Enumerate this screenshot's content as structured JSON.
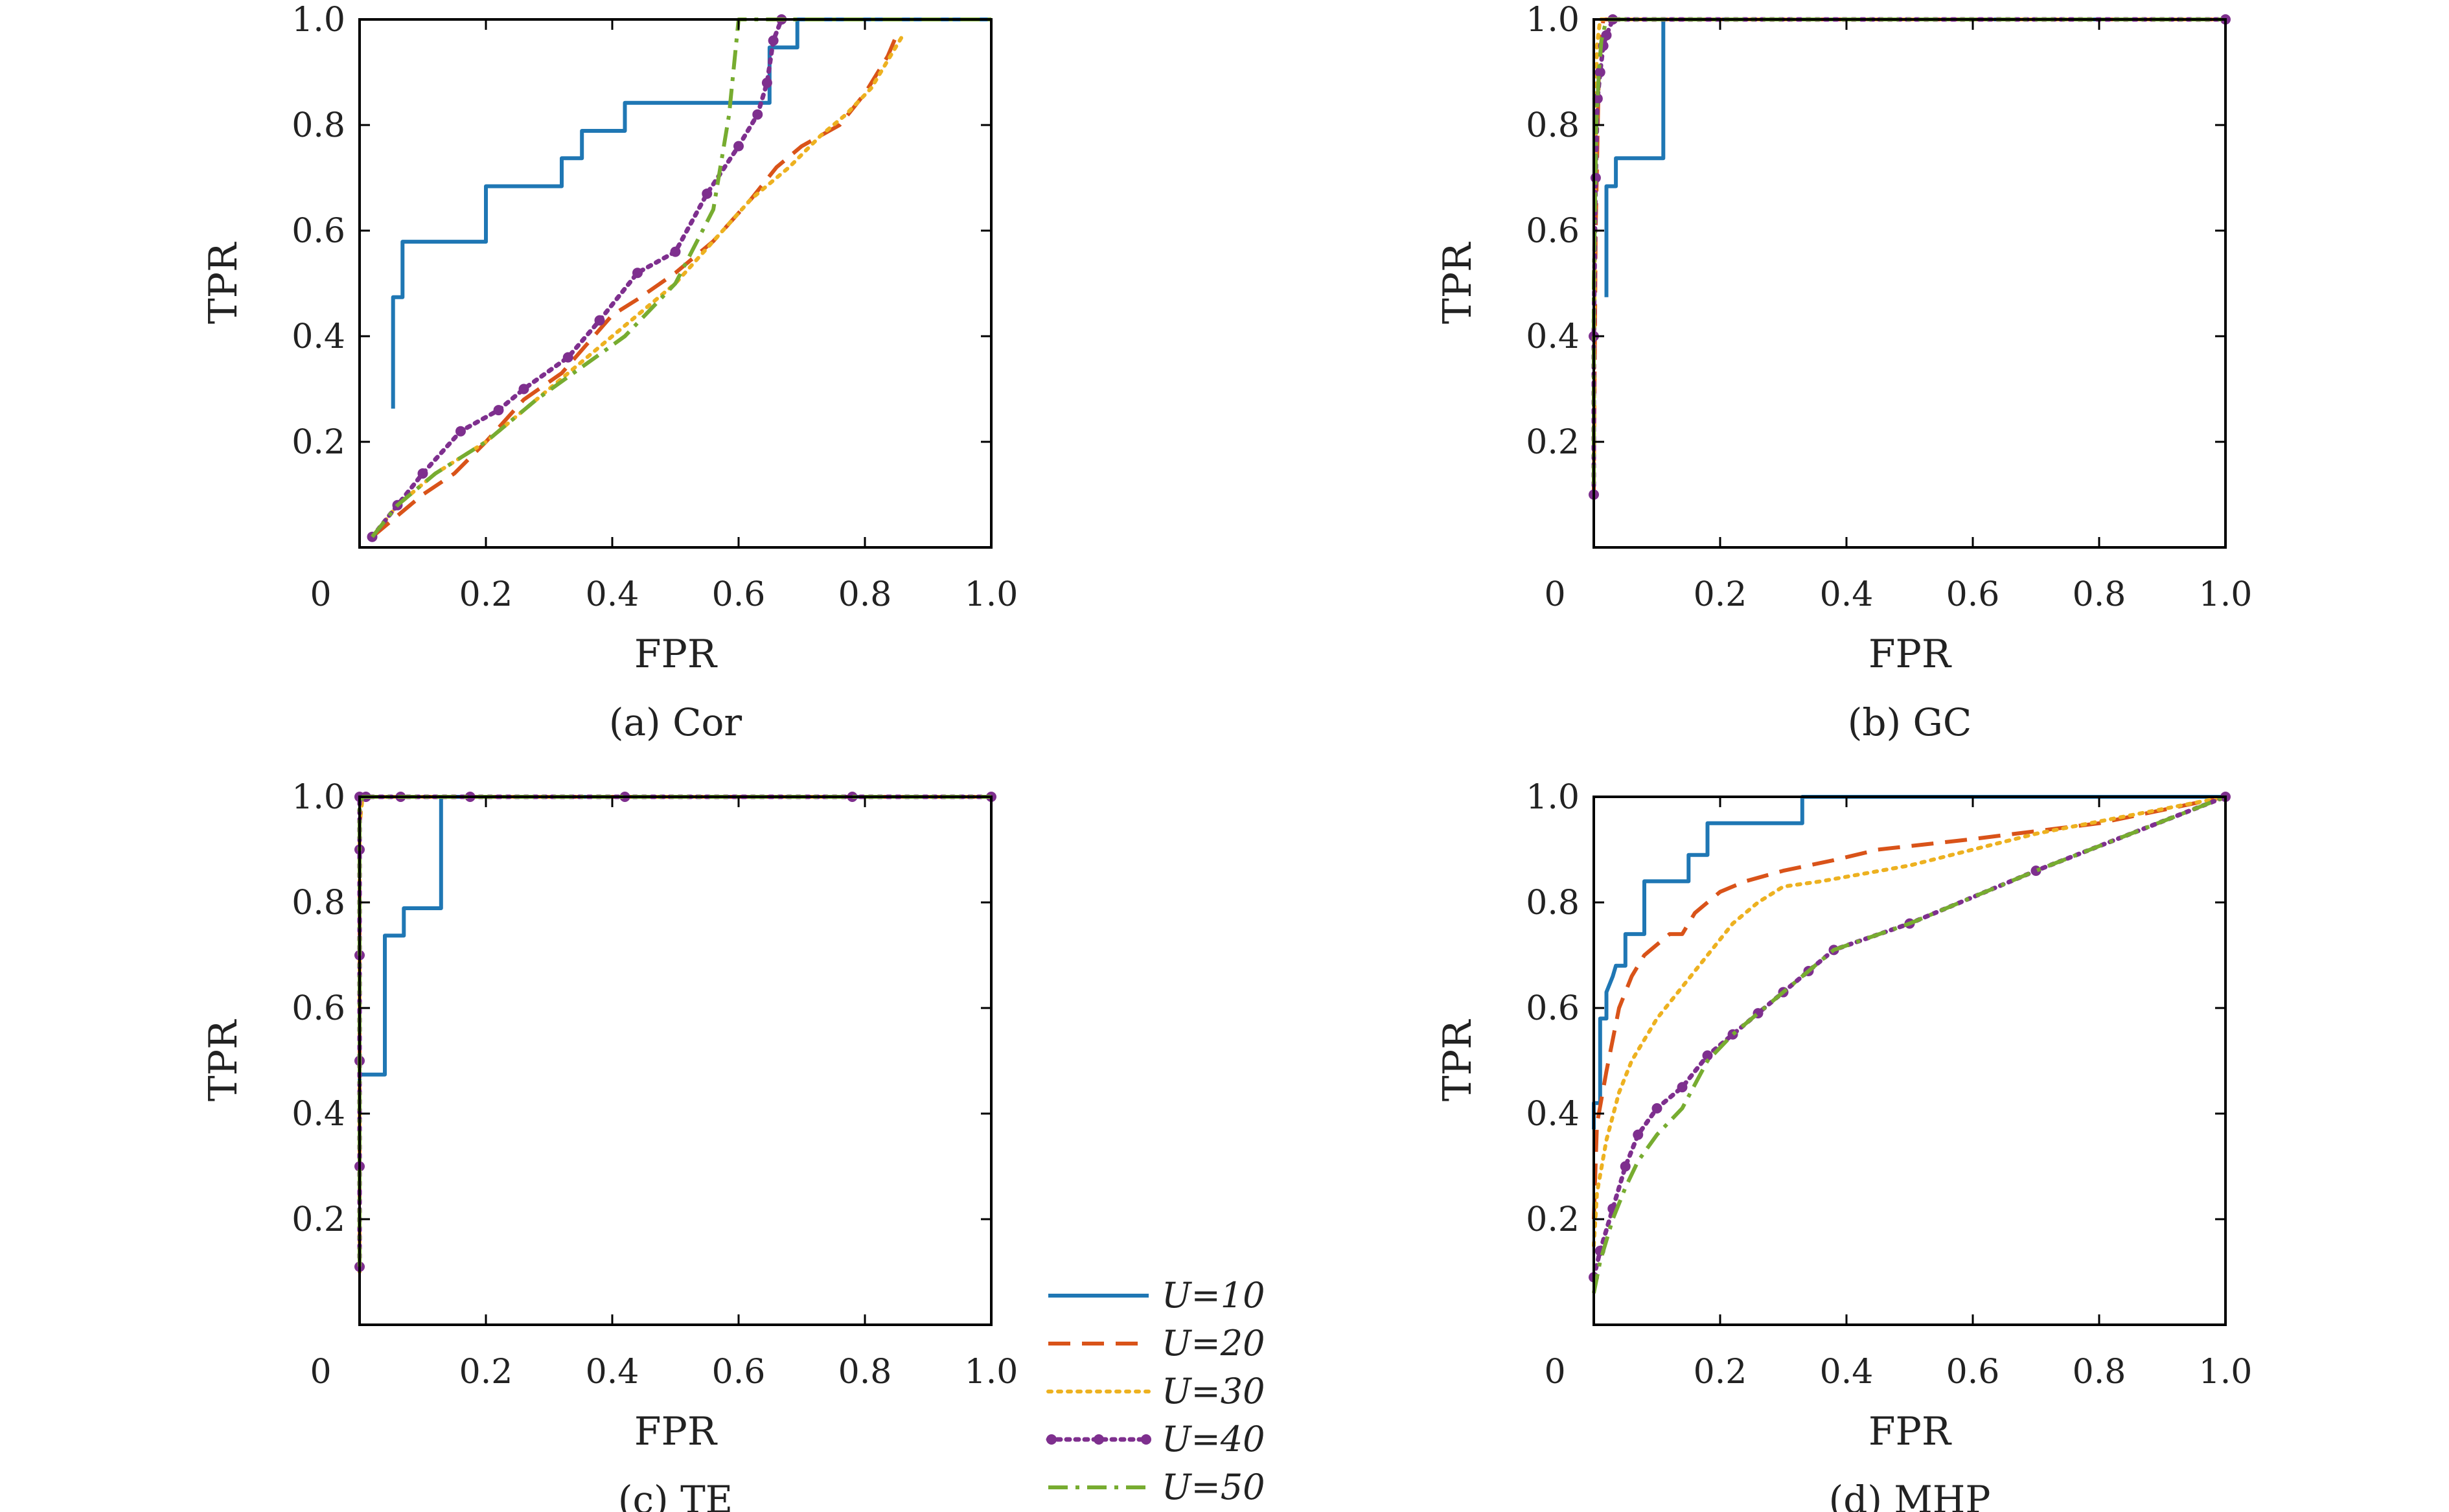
{
  "chart_data": [
    {
      "type": "line",
      "caption": "(a) Cor",
      "xlabel": "FPR",
      "ylabel": "TPR",
      "xlim": [
        0,
        1
      ],
      "ylim": [
        0,
        1
      ],
      "x_ticks": [
        "0",
        "0.2",
        "0.4",
        "0.6",
        "0.8",
        "1.0"
      ],
      "y_ticks": [
        "0.2",
        "0.4",
        "0.6",
        "0.8",
        "1.0"
      ],
      "series": [
        {
          "name": "U=10",
          "x": [
            0.053,
            0.053,
            0.068,
            0.068,
            0.2,
            0.2,
            0.32,
            0.32,
            0.352,
            0.352,
            0.42,
            0.42,
            0.649,
            0.649,
            0.693,
            0.693,
            1.0
          ],
          "y": [
            0.263,
            0.474,
            0.474,
            0.579,
            0.579,
            0.684,
            0.684,
            0.737,
            0.737,
            0.789,
            0.789,
            0.842,
            0.842,
            0.947,
            0.947,
            1.0,
            1.0
          ]
        },
        {
          "name": "U=20",
          "x": [
            0.02,
            0.04,
            0.06,
            0.1,
            0.15,
            0.2,
            0.26,
            0.32,
            0.4,
            0.44,
            0.5,
            0.56,
            0.62,
            0.66,
            0.7,
            0.76,
            0.8,
            0.836,
            0.85
          ],
          "y": [
            0.02,
            0.04,
            0.06,
            0.1,
            0.14,
            0.2,
            0.28,
            0.33,
            0.44,
            0.47,
            0.52,
            0.58,
            0.66,
            0.72,
            0.76,
            0.8,
            0.86,
            0.93,
            0.97
          ]
        },
        {
          "name": "U=30",
          "x": [
            0.02,
            0.06,
            0.12,
            0.2,
            0.28,
            0.35,
            0.42,
            0.5,
            0.56,
            0.62,
            0.68,
            0.73,
            0.77,
            0.81,
            0.84,
            0.86
          ],
          "y": [
            0.02,
            0.08,
            0.14,
            0.2,
            0.28,
            0.35,
            0.42,
            0.5,
            0.58,
            0.66,
            0.72,
            0.78,
            0.82,
            0.87,
            0.93,
            0.97
          ]
        },
        {
          "name": "U=40",
          "x": [
            0.02,
            0.06,
            0.1,
            0.16,
            0.22,
            0.26,
            0.33,
            0.38,
            0.44,
            0.5,
            0.55,
            0.6,
            0.63,
            0.645,
            0.655,
            0.668
          ],
          "y": [
            0.02,
            0.08,
            0.14,
            0.22,
            0.26,
            0.3,
            0.36,
            0.43,
            0.52,
            0.56,
            0.67,
            0.76,
            0.82,
            0.88,
            0.96,
            1.0
          ]
        },
        {
          "name": "U=50",
          "x": [
            0.02,
            0.06,
            0.12,
            0.2,
            0.28,
            0.35,
            0.42,
            0.5,
            0.56,
            0.585,
            0.6,
            1.0
          ],
          "y": [
            0.02,
            0.08,
            0.14,
            0.2,
            0.28,
            0.34,
            0.4,
            0.5,
            0.64,
            0.82,
            1.0,
            1.0
          ]
        }
      ]
    },
    {
      "type": "line",
      "caption": "(b) GC",
      "xlabel": "FPR",
      "ylabel": "TPR",
      "xlim": [
        0,
        1
      ],
      "ylim": [
        0,
        1
      ],
      "x_ticks": [
        "0",
        "0.2",
        "0.4",
        "0.6",
        "0.8",
        "1.0"
      ],
      "y_ticks": [
        "0.2",
        "0.4",
        "0.6",
        "0.8",
        "1.0"
      ],
      "series": [
        {
          "name": "U=10",
          "x": [
            0.02,
            0.02,
            0.035,
            0.035,
            0.055,
            0.055,
            0.11,
            0.11,
            1.0
          ],
          "y": [
            0.474,
            0.684,
            0.684,
            0.737,
            0.737,
            0.737,
            0.737,
            1.0,
            1.0
          ]
        },
        {
          "name": "U=20",
          "x": [
            0.0,
            0.003,
            0.008,
            0.015,
            1.0
          ],
          "y": [
            0.1,
            0.6,
            0.9,
            1.0,
            1.0
          ]
        },
        {
          "name": "U=30",
          "x": [
            0.0,
            0.002,
            0.005,
            0.01,
            1.0
          ],
          "y": [
            0.1,
            0.7,
            0.95,
            1.0,
            1.0
          ]
        },
        {
          "name": "U=40",
          "x": [
            0.0,
            0.0,
            0.003,
            0.006,
            0.01,
            0.015,
            0.02,
            0.03,
            1.0
          ],
          "y": [
            0.1,
            0.4,
            0.7,
            0.85,
            0.9,
            0.95,
            0.97,
            1.0,
            1.0
          ]
        },
        {
          "name": "U=50",
          "x": [
            0.0,
            0.0,
            0.004,
            0.008,
            0.012,
            0.02,
            1.0
          ],
          "y": [
            0.12,
            0.5,
            0.8,
            0.9,
            0.96,
            1.0,
            1.0
          ]
        }
      ]
    },
    {
      "type": "line",
      "caption": "(c) TE",
      "xlabel": "FPR",
      "ylabel": "TPR",
      "xlim": [
        0,
        1
      ],
      "ylim": [
        0,
        1
      ],
      "x_ticks": [
        "0",
        "0.2",
        "0.4",
        "0.6",
        "0.8",
        "1.0"
      ],
      "y_ticks": [
        "0.2",
        "0.4",
        "0.6",
        "0.8",
        "1.0"
      ],
      "series": [
        {
          "name": "U=10",
          "x": [
            0.0,
            0.0,
            0.04,
            0.04,
            0.07,
            0.07,
            0.129,
            0.129,
            1.0
          ],
          "y": [
            0.3,
            0.474,
            0.474,
            0.737,
            0.737,
            0.789,
            0.789,
            1.0,
            1.0
          ]
        },
        {
          "name": "U=20",
          "x": [
            0.0,
            0.0,
            0.005,
            1.0
          ],
          "y": [
            0.1,
            0.95,
            1.0,
            1.0
          ]
        },
        {
          "name": "U=30",
          "x": [
            0.0,
            0.0,
            0.005,
            1.0
          ],
          "y": [
            0.1,
            0.95,
            1.0,
            1.0
          ]
        },
        {
          "name": "U=40",
          "x": [
            0.0,
            0.0,
            0.0,
            0.0,
            0.0,
            0.0,
            0.01,
            0.065,
            0.175,
            0.42,
            0.78,
            1.0
          ],
          "y": [
            0.11,
            0.3,
            0.5,
            0.7,
            0.9,
            1.0,
            1.0,
            1.0,
            1.0,
            1.0,
            1.0,
            1.0
          ]
        },
        {
          "name": "U=50",
          "x": [
            0.0,
            0.0,
            0.005,
            1.0
          ],
          "y": [
            0.11,
            0.98,
            1.0,
            1.0
          ]
        }
      ]
    },
    {
      "type": "line",
      "caption": "(d) MHP",
      "xlabel": "FPR",
      "ylabel": "TPR",
      "xlim": [
        0,
        1
      ],
      "ylim": [
        0,
        1
      ],
      "x_ticks": [
        "0",
        "0.2",
        "0.4",
        "0.6",
        "0.8",
        "1.0"
      ],
      "y_ticks": [
        "0.2",
        "0.4",
        "0.6",
        "0.8",
        "1.0"
      ],
      "series": [
        {
          "name": "U=10",
          "x": [
            0.0,
            0.0,
            0.01,
            0.01,
            0.02,
            0.02,
            0.03,
            0.035,
            0.05,
            0.05,
            0.07,
            0.08,
            0.08,
            0.15,
            0.15,
            0.17,
            0.18,
            0.18,
            0.33,
            0.33,
            1.0
          ],
          "y": [
            0.37,
            0.42,
            0.42,
            0.58,
            0.58,
            0.63,
            0.66,
            0.68,
            0.68,
            0.74,
            0.74,
            0.74,
            0.84,
            0.84,
            0.89,
            0.89,
            0.89,
            0.95,
            0.95,
            1.0,
            1.0
          ]
        },
        {
          "name": "U=20",
          "x": [
            0.0,
            0.005,
            0.02,
            0.04,
            0.06,
            0.08,
            0.1,
            0.12,
            0.14,
            0.16,
            0.2,
            0.24,
            0.3,
            0.38,
            0.45,
            0.6,
            0.8,
            1.0
          ],
          "y": [
            0.2,
            0.38,
            0.48,
            0.6,
            0.66,
            0.7,
            0.72,
            0.74,
            0.74,
            0.78,
            0.82,
            0.84,
            0.86,
            0.88,
            0.9,
            0.92,
            0.95,
            1.0
          ]
        },
        {
          "name": "U=30",
          "x": [
            0.0,
            0.005,
            0.02,
            0.04,
            0.06,
            0.08,
            0.1,
            0.14,
            0.18,
            0.22,
            0.26,
            0.3,
            0.36,
            0.5,
            0.7,
            1.0
          ],
          "y": [
            0.15,
            0.25,
            0.35,
            0.44,
            0.5,
            0.54,
            0.58,
            0.64,
            0.7,
            0.76,
            0.8,
            0.83,
            0.84,
            0.87,
            0.93,
            1.0
          ]
        },
        {
          "name": "U=40",
          "x": [
            0.0,
            0.01,
            0.03,
            0.05,
            0.07,
            0.1,
            0.14,
            0.18,
            0.22,
            0.26,
            0.3,
            0.34,
            0.38,
            0.5,
            0.7,
            1.0
          ],
          "y": [
            0.09,
            0.14,
            0.22,
            0.3,
            0.36,
            0.41,
            0.45,
            0.51,
            0.55,
            0.59,
            0.63,
            0.67,
            0.71,
            0.76,
            0.86,
            1.0
          ]
        },
        {
          "name": "U=50",
          "x": [
            0.0,
            0.01,
            0.03,
            0.05,
            0.07,
            0.1,
            0.14,
            0.18,
            0.22,
            0.26,
            0.3,
            0.34,
            0.38,
            0.5,
            0.7,
            1.0
          ],
          "y": [
            0.06,
            0.12,
            0.2,
            0.26,
            0.31,
            0.36,
            0.41,
            0.5,
            0.55,
            0.59,
            0.63,
            0.67,
            0.71,
            0.76,
            0.86,
            1.0
          ]
        }
      ]
    }
  ],
  "legend": {
    "entries": [
      {
        "label": "U=10",
        "color": "#1f77b4",
        "style": "solid"
      },
      {
        "label": "U=20",
        "color": "#d95319",
        "style": "dashed"
      },
      {
        "label": "U=30",
        "color": "#edb120",
        "style": "dotted"
      },
      {
        "label": "U=40",
        "color": "#7e2f8e",
        "style": "dotted-markers"
      },
      {
        "label": "U=50",
        "color": "#77ac30",
        "style": "dash-dot"
      }
    ]
  }
}
